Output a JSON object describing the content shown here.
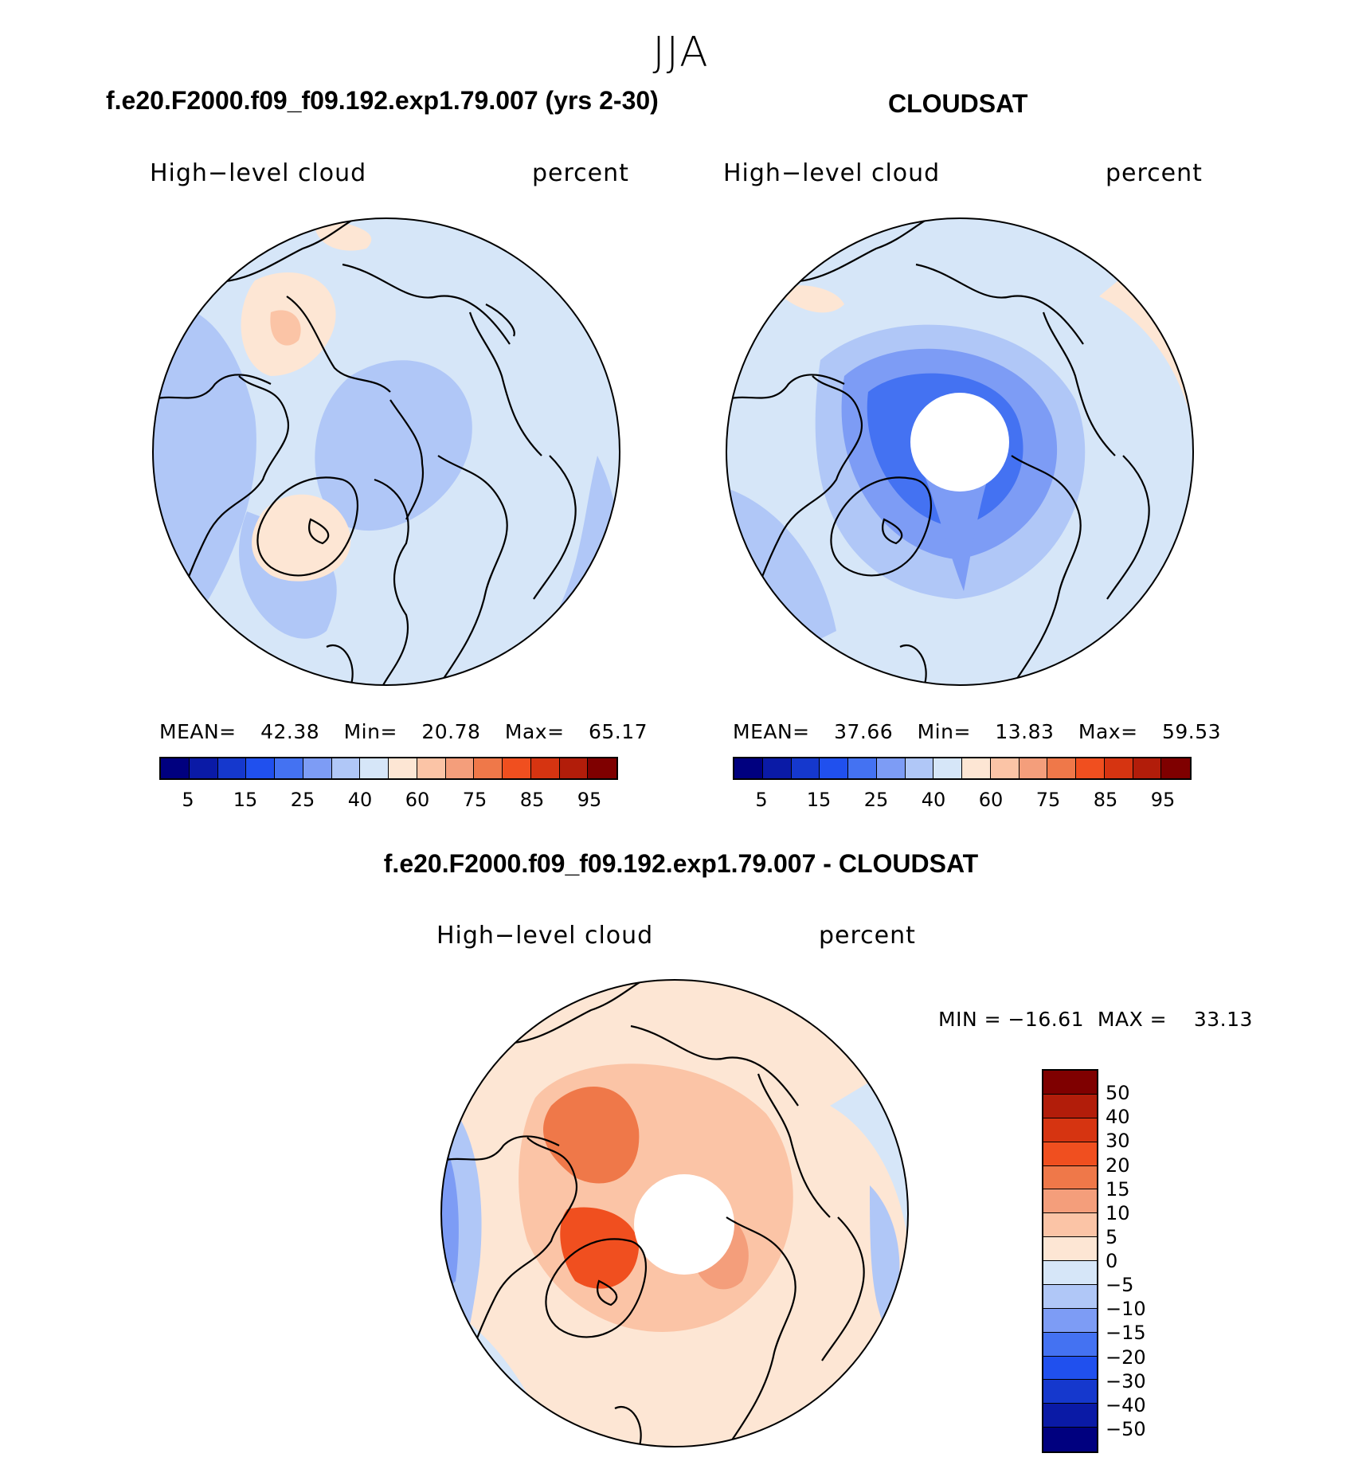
{
  "title": "JJA",
  "colors": {
    "abs_palette": [
      "#00007f",
      "#0a1aa6",
      "#1538cd",
      "#2050ee",
      "#4472f2",
      "#7d9cf5",
      "#b0c7f7",
      "#d6e6f8",
      "#fde6d4",
      "#fbc4a6",
      "#f49e7b",
      "#ef7849",
      "#f04f1f",
      "#d63411",
      "#b21d0a",
      "#7f0000"
    ],
    "diff_palette": [
      "#00007f",
      "#0a1aa6",
      "#1538cd",
      "#2050ee",
      "#4472f2",
      "#7d9cf5",
      "#b0c7f7",
      "#d6e6f8",
      "#fde6d4",
      "#fbc4a6",
      "#f49e7b",
      "#ef7849",
      "#f04f1f",
      "#d63411",
      "#b21d0a",
      "#7f0000"
    ]
  },
  "panels": {
    "model": {
      "case_title": "f.e20.F2000.f09_f09.192.exp1.79.007 (yrs 2-30)",
      "variable": "High−level cloud",
      "units": "percent",
      "mean_label": "MEAN=",
      "mean": "42.38",
      "min_label": "Min=",
      "min": "20.78",
      "max_label": "Max=",
      "max": "65.17"
    },
    "obs": {
      "case_title": "CLOUDSAT",
      "variable": "High−level cloud",
      "units": "percent",
      "mean_label": "MEAN=",
      "mean": "37.66",
      "min_label": "Min=",
      "min": "13.83",
      "max_label": "Max=",
      "max": "59.53"
    },
    "diff": {
      "case_title": "f.e20.F2000.f09_f09.192.exp1.79.007 - CLOUDSAT",
      "variable": "High−level cloud",
      "units": "percent",
      "minmax_label": "MIN = −16.61  MAX =    33.13"
    }
  },
  "chart_data": [
    {
      "type": "heatmap",
      "projection": "north polar stereographic",
      "title": "f.e20.F2000.f09_f09.192.exp1.79.007 (yrs 2-30)",
      "variable": "High-level cloud",
      "units": "percent",
      "mean": 42.38,
      "min": 20.78,
      "max": 65.17,
      "colorbar_levels": [
        5,
        10,
        15,
        20,
        25,
        30,
        40,
        50,
        60,
        70,
        75,
        80,
        85,
        90,
        95
      ],
      "colorbar_tick_labels": [
        "5",
        "15",
        "25",
        "40",
        "60",
        "75",
        "85",
        "95"
      ]
    },
    {
      "type": "heatmap",
      "projection": "north polar stereographic",
      "title": "CLOUDSAT",
      "variable": "High-level cloud",
      "units": "percent",
      "mean": 37.66,
      "min": 13.83,
      "max": 59.53,
      "colorbar_levels": [
        5,
        10,
        15,
        20,
        25,
        30,
        40,
        50,
        60,
        70,
        75,
        80,
        85,
        90,
        95
      ],
      "colorbar_tick_labels": [
        "5",
        "15",
        "25",
        "40",
        "60",
        "75",
        "85",
        "95"
      ]
    },
    {
      "type": "heatmap",
      "projection": "north polar stereographic",
      "title": "f.e20.F2000.f09_f09.192.exp1.79.007 - CLOUDSAT",
      "variable": "High-level cloud",
      "units": "percent",
      "min": -16.61,
      "max": 33.13,
      "colorbar_levels": [
        50,
        40,
        30,
        20,
        15,
        10,
        5,
        0,
        -5,
        -10,
        -15,
        -20,
        -30,
        -40,
        -50
      ],
      "colorbar_tick_labels": [
        "50",
        "40",
        "30",
        "20",
        "15",
        "10",
        "5",
        "0",
        "−5",
        "−10",
        "−15",
        "−20",
        "−30",
        "−40",
        "−50"
      ]
    }
  ]
}
